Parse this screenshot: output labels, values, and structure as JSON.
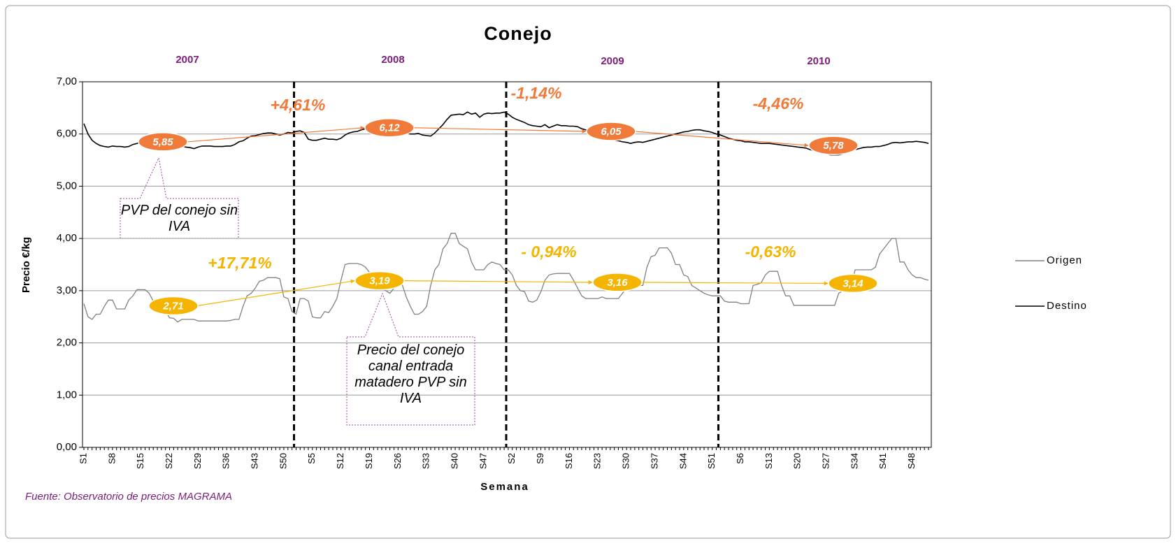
{
  "chart_data": {
    "type": "line",
    "title": "Conejo",
    "y_label": "Precio €/kg",
    "x_label": "Semana",
    "source": "Fuente: Observatorio de precios MAGRAMA",
    "years": [
      "2007",
      "2008",
      "2009",
      "2010"
    ],
    "ylim": [
      0,
      7
    ],
    "yticks": [
      {
        "value": 0,
        "label": "0,00"
      },
      {
        "value": 1,
        "label": "1,00"
      },
      {
        "value": 2,
        "label": "2,00"
      },
      {
        "value": 3,
        "label": "3,00"
      },
      {
        "value": 4,
        "label": "4,00"
      },
      {
        "value": 5,
        "label": "5,00"
      },
      {
        "value": 6,
        "label": "6,00"
      },
      {
        "value": 7,
        "label": "7,00"
      }
    ],
    "grid": true,
    "categories": [
      "S1",
      null,
      null,
      null,
      null,
      null,
      null,
      "S8",
      null,
      null,
      null,
      null,
      null,
      null,
      "S15",
      null,
      null,
      null,
      null,
      null,
      null,
      "S22",
      null,
      null,
      null,
      null,
      null,
      null,
      "S29",
      null,
      null,
      null,
      null,
      null,
      null,
      "S36",
      null,
      null,
      null,
      null,
      null,
      null,
      "S43",
      null,
      null,
      null,
      null,
      null,
      null,
      "S50",
      null,
      null,
      null,
      null,
      null,
      null,
      "S5",
      null,
      null,
      null,
      null,
      null,
      null,
      "S12",
      null,
      null,
      null,
      null,
      null,
      null,
      "S19",
      null,
      null,
      null,
      null,
      null,
      null,
      "S26",
      null,
      null,
      null,
      null,
      null,
      null,
      "S33",
      null,
      null,
      null,
      null,
      null,
      null,
      "S40",
      null,
      null,
      null,
      null,
      null,
      null,
      "S47",
      null,
      null,
      null,
      null,
      null,
      null,
      "S2",
      null,
      null,
      null,
      null,
      null,
      null,
      "S9",
      null,
      null,
      null,
      null,
      null,
      null,
      "S16",
      null,
      null,
      null,
      null,
      null,
      null,
      "S23",
      null,
      null,
      null,
      null,
      null,
      null,
      "S30",
      null,
      null,
      null,
      null,
      null,
      null,
      "S37",
      null,
      null,
      null,
      null,
      null,
      null,
      "S44",
      null,
      null,
      null,
      null,
      null,
      null,
      "S51",
      null,
      null,
      null,
      null,
      null,
      null,
      "S6",
      null,
      null,
      null,
      null,
      null,
      null,
      "S13",
      null,
      null,
      null,
      null,
      null,
      null,
      "S20",
      null,
      null,
      null,
      null,
      null,
      null,
      "S27",
      null,
      null,
      null,
      null,
      null,
      null,
      "S34",
      null,
      null,
      null,
      null,
      null,
      null,
      "S41",
      null,
      null,
      null,
      null,
      null,
      null,
      "S48",
      null,
      null,
      null,
      null
    ],
    "series": [
      {
        "name": "Origen",
        "color": "#808080",
        "values": [
          2.75,
          2.5,
          2.45,
          2.55,
          2.55,
          2.7,
          2.82,
          2.82,
          2.65,
          2.65,
          2.65,
          2.82,
          2.9,
          3.02,
          3.02,
          3.02,
          2.95,
          2.8,
          2.75,
          2.7,
          2.6,
          2.48,
          2.47,
          2.4,
          2.45,
          2.45,
          2.45,
          2.45,
          2.42,
          2.42,
          2.42,
          2.42,
          2.42,
          2.42,
          2.42,
          2.42,
          2.43,
          2.45,
          2.45,
          2.7,
          2.9,
          2.95,
          3.05,
          3.18,
          3.2,
          3.25,
          3.25,
          3.25,
          3.23,
          2.88,
          2.85,
          2.6,
          2.55,
          2.85,
          2.85,
          2.8,
          2.5,
          2.48,
          2.48,
          2.6,
          2.58,
          2.7,
          2.85,
          3.2,
          3.5,
          3.52,
          3.52,
          3.52,
          3.5,
          3.45,
          3.35,
          3.1,
          3.05,
          3.05,
          3.0,
          2.95,
          3.05,
          3.12,
          3.12,
          2.88,
          2.7,
          2.55,
          2.55,
          2.6,
          2.7,
          3.1,
          3.4,
          3.5,
          3.8,
          3.9,
          4.1,
          4.1,
          3.9,
          3.85,
          3.8,
          3.55,
          3.4,
          3.4,
          3.4,
          3.5,
          3.55,
          3.52,
          3.5,
          3.4,
          3.4,
          3.3,
          3.1,
          3.0,
          2.98,
          2.8,
          2.78,
          2.82,
          2.98,
          3.2,
          3.3,
          3.32,
          3.33,
          3.33,
          3.33,
          3.33,
          3.2,
          3.05,
          2.9,
          2.85,
          2.85,
          2.85,
          2.85,
          2.88,
          2.85,
          2.85,
          2.85,
          2.85,
          2.95,
          3.05,
          3.1,
          3.1,
          3.1,
          3.1,
          3.45,
          3.65,
          3.68,
          3.82,
          3.82,
          3.82,
          3.72,
          3.5,
          3.5,
          3.3,
          3.27,
          3.1,
          3.05,
          3.0,
          2.95,
          2.92,
          2.9,
          2.9,
          2.9,
          2.8,
          2.78,
          2.78,
          2.78,
          2.75,
          2.75,
          2.75,
          3.1,
          3.12,
          3.15,
          3.3,
          3.37,
          3.37,
          3.37,
          3.1,
          2.9,
          2.9,
          2.72,
          2.72,
          2.72,
          2.72,
          2.72,
          2.72,
          2.72,
          2.72,
          2.72,
          2.72,
          2.72,
          2.95,
          3.0,
          3.02,
          3.05,
          3.4,
          3.4,
          3.4,
          3.4,
          3.4,
          3.45,
          3.7,
          3.8,
          3.9,
          4.0,
          4.0,
          3.55,
          3.55,
          3.4,
          3.3,
          3.25,
          3.25,
          3.22,
          3.2
        ]
      },
      {
        "name": "Destino",
        "color": "#000000",
        "values": [
          6.2,
          6.0,
          5.88,
          5.82,
          5.78,
          5.76,
          5.75,
          5.77,
          5.76,
          5.76,
          5.75,
          5.76,
          5.8,
          5.82,
          5.85,
          5.85,
          5.84,
          5.82,
          5.8,
          5.8,
          5.78,
          5.77,
          5.76,
          5.76,
          5.77,
          5.75,
          5.74,
          5.72,
          5.75,
          5.77,
          5.77,
          5.77,
          5.76,
          5.76,
          5.76,
          5.77,
          5.77,
          5.8,
          5.85,
          5.87,
          5.92,
          5.96,
          5.97,
          5.99,
          6.01,
          6.02,
          6.02,
          6.0,
          5.98,
          6.0,
          6.03,
          6.02,
          6.05,
          6.06,
          6.03,
          5.9,
          5.88,
          5.88,
          5.9,
          5.92,
          5.9,
          5.9,
          5.89,
          5.92,
          5.98,
          6.02,
          6.04,
          6.05,
          6.08,
          6.1,
          6.12,
          6.12,
          6.11,
          6.1,
          6.1,
          6.08,
          6.05,
          6.03,
          6.04,
          6.02,
          6.0,
          6.0,
          6.01,
          5.98,
          5.97,
          5.96,
          6.02,
          6.1,
          6.18,
          6.28,
          6.36,
          6.37,
          6.38,
          6.37,
          6.42,
          6.38,
          6.4,
          6.32,
          6.38,
          6.4,
          6.39,
          6.4,
          6.4,
          6.42,
          6.38,
          6.32,
          6.28,
          6.25,
          6.22,
          6.18,
          6.16,
          6.15,
          6.14,
          6.18,
          6.12,
          6.15,
          6.18,
          6.16,
          6.16,
          6.15,
          6.15,
          6.14,
          6.1,
          6.08,
          6.05,
          6.02,
          5.98,
          5.97,
          5.93,
          5.9,
          5.88,
          5.87,
          5.85,
          5.84,
          5.82,
          5.84,
          5.85,
          5.84,
          5.86,
          5.88,
          5.9,
          5.92,
          5.94,
          5.96,
          5.98,
          6.0,
          6.02,
          6.04,
          6.05,
          6.07,
          6.08,
          6.08,
          6.06,
          6.05,
          6.03,
          6.0,
          5.98,
          5.95,
          5.92,
          5.9,
          5.88,
          5.87,
          5.85,
          5.85,
          5.84,
          5.83,
          5.82,
          5.82,
          5.82,
          5.81,
          5.8,
          5.79,
          5.78,
          5.77,
          5.76,
          5.75,
          5.74,
          5.73,
          5.7,
          5.68,
          5.66,
          5.64,
          5.62,
          5.6,
          5.6,
          5.6,
          5.62,
          5.65,
          5.68,
          5.7,
          5.72,
          5.74,
          5.75,
          5.75,
          5.76,
          5.76,
          5.78,
          5.8,
          5.83,
          5.84,
          5.83,
          5.84,
          5.85,
          5.85,
          5.86,
          5.85,
          5.84,
          5.82
        ]
      }
    ],
    "summaries": [
      {
        "color": "#f5b400",
        "values": [
          2.71,
          3.19,
          3.16,
          3.14
        ],
        "value_labels": [
          "2,71",
          "3,19",
          "3,16",
          "3,14"
        ],
        "changes": [
          "+17,71%",
          "- 0,94%",
          "-0,63%"
        ]
      },
      {
        "color": "#f07a3a",
        "values": [
          5.85,
          6.12,
          6.05,
          5.78
        ],
        "value_labels": [
          "5,85",
          "6,12",
          "6,05",
          "5,78"
        ],
        "changes": [
          "+4,61%",
          "-1,14%",
          "-4,46%"
        ]
      }
    ],
    "callouts": [
      "PVP del conejo sin IVA",
      "Precio del conejo canal entrada matadero PVP sin IVA"
    ]
  }
}
